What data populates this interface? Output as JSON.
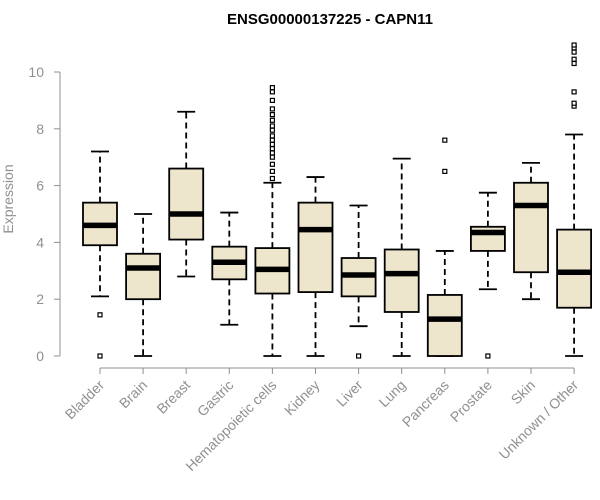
{
  "chart_data": {
    "type": "boxplot",
    "title": "ENSG00000137225 - CAPN11",
    "ylabel": "Expression",
    "xlabel": "",
    "ylim": [
      0,
      10
    ],
    "yticks": [
      0,
      2,
      4,
      6,
      8,
      10
    ],
    "box_color": "#ede6cc",
    "axis_color": "#909090",
    "categories": [
      "Bladder",
      "Brain",
      "Breast",
      "Gastric",
      "Hematopoietic cells",
      "Kidney",
      "Liver",
      "Lung",
      "Pancreas",
      "Prostate",
      "Skin",
      "Unknown / Other"
    ],
    "boxes": [
      {
        "min": 2.1,
        "q1": 3.9,
        "median": 4.6,
        "q3": 5.4,
        "max": 7.2,
        "outliers": [
          1.45,
          0.0
        ]
      },
      {
        "min": 0.0,
        "q1": 2.0,
        "median": 3.1,
        "q3": 3.6,
        "max": 5.0,
        "outliers": []
      },
      {
        "min": 2.8,
        "q1": 4.1,
        "median": 5.0,
        "q3": 6.6,
        "max": 8.6,
        "outliers": []
      },
      {
        "min": 1.1,
        "q1": 2.7,
        "median": 3.3,
        "q3": 3.85,
        "max": 5.05,
        "outliers": []
      },
      {
        "min": 0.0,
        "q1": 2.2,
        "median": 3.05,
        "q3": 3.8,
        "max": 6.1,
        "outliers": [
          6.25,
          6.5,
          6.75,
          7.0,
          7.15,
          7.3,
          7.45,
          7.6,
          7.75,
          7.95,
          8.1,
          8.3,
          8.5,
          8.7,
          9.0,
          9.3,
          9.45
        ]
      },
      {
        "min": 0.0,
        "q1": 2.25,
        "median": 4.45,
        "q3": 5.4,
        "max": 6.3,
        "outliers": []
      },
      {
        "min": 1.05,
        "q1": 2.1,
        "median": 2.85,
        "q3": 3.45,
        "max": 5.3,
        "outliers": [
          0.0
        ]
      },
      {
        "min": 0.0,
        "q1": 1.55,
        "median": 2.9,
        "q3": 3.75,
        "max": 6.95,
        "outliers": []
      },
      {
        "min": 0.0,
        "q1": 0.0,
        "median": 1.3,
        "q3": 2.15,
        "max": 3.7,
        "outliers": [
          6.5,
          7.6
        ]
      },
      {
        "min": 2.35,
        "q1": 3.7,
        "median": 4.35,
        "q3": 4.55,
        "max": 5.75,
        "outliers": [
          0.0
        ]
      },
      {
        "min": 2.0,
        "q1": 2.95,
        "median": 5.3,
        "q3": 6.1,
        "max": 6.8,
        "outliers": []
      },
      {
        "min": 0.0,
        "q1": 1.7,
        "median": 2.95,
        "q3": 4.45,
        "max": 7.8,
        "outliers": [
          8.8,
          8.9,
          9.3,
          10.3,
          10.45,
          10.7,
          10.85,
          10.95
        ]
      }
    ]
  }
}
